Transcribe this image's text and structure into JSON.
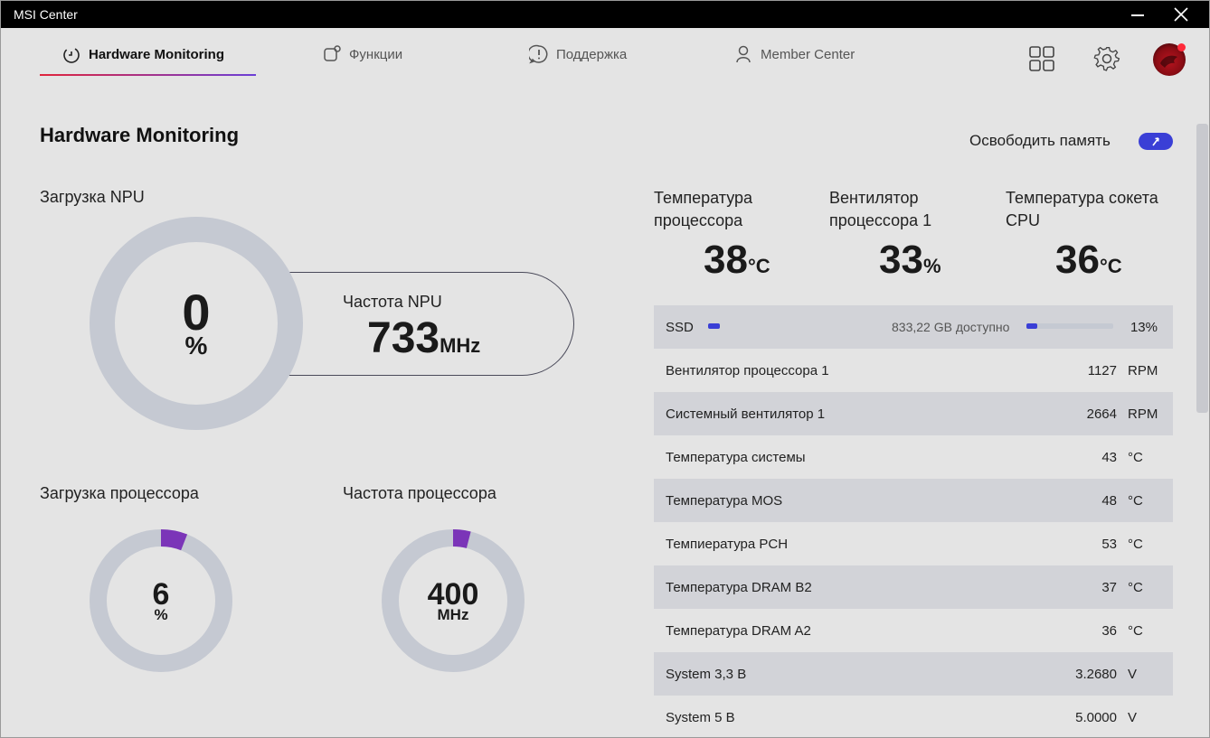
{
  "window": {
    "title": "MSI Center"
  },
  "nav": {
    "tabs": [
      {
        "label": "Hardware Monitoring"
      },
      {
        "label": "Функции"
      },
      {
        "label": "Поддержка"
      },
      {
        "label": "Member Center"
      }
    ]
  },
  "page": {
    "title": "Hardware Monitoring",
    "free_memory_label": "Освободить память"
  },
  "npu": {
    "load_label": "Загрузка NPU",
    "load_value": "0",
    "load_unit": "%",
    "freq_label": "Частота NPU",
    "freq_value": "733",
    "freq_unit": "MHz"
  },
  "cpu_load": {
    "label": "Загрузка процессора",
    "value": "6",
    "unit": "%",
    "fraction": 0.06
  },
  "cpu_freq": {
    "label": "Частота процессора",
    "value": "400",
    "unit": "MHz",
    "fraction": 0.04
  },
  "stats": [
    {
      "title": "Температура процессора",
      "value": "38",
      "unit": "°C"
    },
    {
      "title": "Вентилятор процессора 1",
      "value": "33",
      "unit": "%"
    },
    {
      "title": "Температура сокета CPU",
      "value": "36",
      "unit": "°C"
    }
  ],
  "ssd": {
    "name": "SSD",
    "available": "833,22 GB доступно",
    "percent": "13%",
    "fraction": 0.13
  },
  "sensors": [
    {
      "name": "Вентилятор процессора 1",
      "value": "1127",
      "unit": "RPM"
    },
    {
      "name": "Системный вентилятор 1",
      "value": "2664",
      "unit": "RPM"
    },
    {
      "name": "Температура системы",
      "value": "43",
      "unit": "°C"
    },
    {
      "name": "Температура MOS",
      "value": "48",
      "unit": "°C"
    },
    {
      "name": "Темпиература PCH",
      "value": "53",
      "unit": "°C"
    },
    {
      "name": "Температура DRAM B2",
      "value": "37",
      "unit": "°C"
    },
    {
      "name": "Температура DRAM A2",
      "value": "36",
      "unit": "°C"
    },
    {
      "name": "System 3,3 В",
      "value": "3.2680",
      "unit": "V"
    },
    {
      "name": "System 5 В",
      "value": "5.0000",
      "unit": "V"
    }
  ],
  "colors": {
    "accent": "#3a3fd6",
    "gauge_track": "#c5c9d2",
    "gauge_fill": "#7b35b8"
  },
  "icons": {
    "tabs": [
      "timer-icon",
      "feature-icon",
      "support-icon",
      "member-icon"
    ],
    "toolbar": [
      "grid-icon",
      "gear-icon",
      "avatar"
    ]
  }
}
